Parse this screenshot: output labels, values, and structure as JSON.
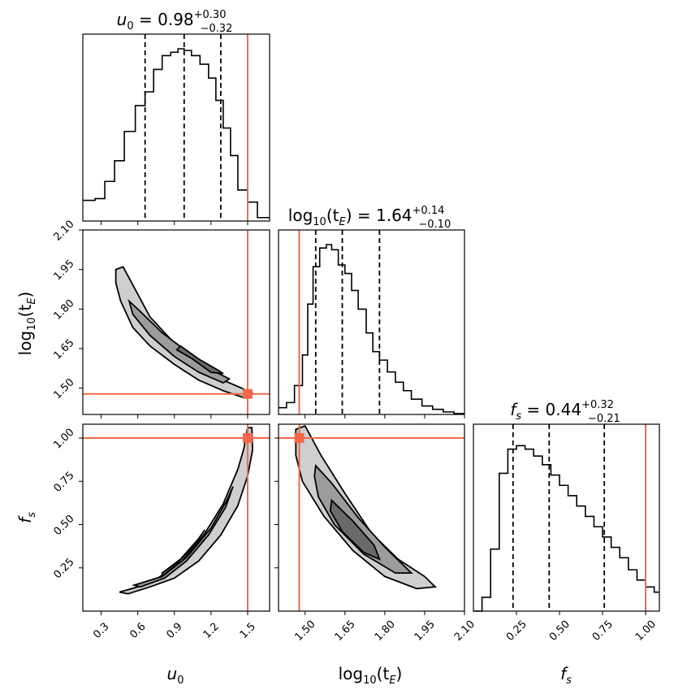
{
  "chart_data": {
    "type": "corner",
    "parameters": [
      {
        "key": "u0",
        "label_main": "u",
        "label_sub": "0",
        "median": "0.98",
        "err_plus": "+0.30",
        "err_minus": "−0.32",
        "truth": 1.5,
        "range": [
          0.15,
          1.68
        ],
        "ticks": [
          0.3,
          0.6,
          0.9,
          1.2,
          1.5
        ],
        "tick_labels": [
          "0.3",
          "0.6",
          "0.9",
          "1.2",
          "1.5"
        ],
        "quantiles": [
          0.66,
          0.98,
          1.28
        ],
        "hist_edges": [
          0.15,
          0.25,
          0.33,
          0.41,
          0.49,
          0.58,
          0.66,
          0.73,
          0.8,
          0.87,
          0.93,
          0.98,
          1.04,
          1.11,
          1.18,
          1.24,
          1.3,
          1.36,
          1.42,
          1.5,
          1.58,
          1.68
        ],
        "hist_counts": [
          0.12,
          0.13,
          0.23,
          0.35,
          0.52,
          0.67,
          0.75,
          0.88,
          0.96,
          0.98,
          1.0,
          0.99,
          0.96,
          0.91,
          0.83,
          0.7,
          0.54,
          0.38,
          0.18,
          0.11,
          0.02
        ]
      },
      {
        "key": "logtE",
        "label_main": "log",
        "label_sub": "10",
        "label_arg": "(t",
        "label_arg_sub": "E",
        "label_end": ")",
        "median": "1.64",
        "err_plus": "+0.14",
        "err_minus": "−0.10",
        "truth": 1.478,
        "range": [
          1.4,
          2.1
        ],
        "ticks": [
          1.5,
          1.65,
          1.8,
          1.95,
          2.1
        ],
        "tick_labels": [
          "1.50",
          "1.65",
          "1.80",
          "1.95",
          "2.10"
        ],
        "quantiles": [
          1.54,
          1.64,
          1.78
        ],
        "hist_edges": [
          1.4,
          1.43,
          1.46,
          1.49,
          1.51,
          1.53,
          1.555,
          1.58,
          1.6,
          1.625,
          1.65,
          1.675,
          1.7,
          1.73,
          1.755,
          1.78,
          1.81,
          1.84,
          1.87,
          1.9,
          1.94,
          1.98,
          2.02,
          2.06,
          2.1
        ],
        "hist_counts": [
          0.04,
          0.07,
          0.17,
          0.35,
          0.65,
          0.87,
          0.98,
          1.0,
          0.97,
          0.88,
          0.83,
          0.73,
          0.62,
          0.48,
          0.37,
          0.32,
          0.25,
          0.19,
          0.14,
          0.09,
          0.05,
          0.03,
          0.015,
          0.005
        ]
      },
      {
        "key": "fs",
        "label_main": "f",
        "label_sub": "s",
        "median": "0.44",
        "err_plus": "+0.32",
        "err_minus": "−0.21",
        "truth": 1.0,
        "range": [
          0.0,
          1.08
        ],
        "ticks": [
          0.25,
          0.5,
          0.75,
          1.0
        ],
        "tick_labels": [
          "0.25",
          "0.50",
          "0.75",
          "1.00"
        ],
        "quantiles": [
          0.23,
          0.44,
          0.76
        ],
        "hist_edges": [
          0.0,
          0.05,
          0.1,
          0.15,
          0.2,
          0.25,
          0.3,
          0.35,
          0.4,
          0.45,
          0.5,
          0.55,
          0.6,
          0.65,
          0.7,
          0.75,
          0.8,
          0.85,
          0.9,
          0.95,
          1.0,
          1.05,
          1.08
        ],
        "hist_counts": [
          0.0,
          0.08,
          0.36,
          0.8,
          0.94,
          0.96,
          0.94,
          0.9,
          0.85,
          0.79,
          0.73,
          0.67,
          0.61,
          0.55,
          0.49,
          0.43,
          0.37,
          0.31,
          0.24,
          0.18,
          0.14,
          0.11
        ]
      }
    ],
    "contours": {
      "logtE_vs_u0": {
        "level1": [
          [
            0.42,
            1.95
          ],
          [
            0.48,
            1.96
          ],
          [
            0.55,
            1.9
          ],
          [
            0.7,
            1.77
          ],
          [
            0.9,
            1.67
          ],
          [
            1.1,
            1.59
          ],
          [
            1.3,
            1.53
          ],
          [
            1.45,
            1.5
          ],
          [
            1.54,
            1.48
          ],
          [
            1.48,
            1.462
          ],
          [
            1.3,
            1.49
          ],
          [
            1.1,
            1.53
          ],
          [
            0.9,
            1.59
          ],
          [
            0.7,
            1.66
          ],
          [
            0.56,
            1.73
          ],
          [
            0.46,
            1.83
          ],
          [
            0.42,
            1.9
          ]
        ],
        "level2": [
          [
            0.53,
            1.83
          ],
          [
            0.6,
            1.8
          ],
          [
            0.8,
            1.71
          ],
          [
            1.0,
            1.64
          ],
          [
            1.2,
            1.57
          ],
          [
            1.35,
            1.535
          ],
          [
            1.3,
            1.52
          ],
          [
            1.1,
            1.56
          ],
          [
            0.9,
            1.62
          ],
          [
            0.7,
            1.7
          ],
          [
            0.56,
            1.78
          ]
        ],
        "level3": [
          [
            0.95,
            1.66
          ],
          [
            1.1,
            1.61
          ],
          [
            1.25,
            1.57
          ],
          [
            1.3,
            1.555
          ],
          [
            1.2,
            1.56
          ],
          [
            1.05,
            1.61
          ],
          [
            0.92,
            1.645
          ]
        ]
      },
      "fs_vs_u0": {
        "level1": [
          [
            0.45,
            0.11
          ],
          [
            0.7,
            0.16
          ],
          [
            0.95,
            0.28
          ],
          [
            1.15,
            0.45
          ],
          [
            1.3,
            0.62
          ],
          [
            1.42,
            0.82
          ],
          [
            1.47,
            0.94
          ],
          [
            1.5,
            1.06
          ],
          [
            1.535,
            1.06
          ],
          [
            1.54,
            0.93
          ],
          [
            1.5,
            0.78
          ],
          [
            1.42,
            0.61
          ],
          [
            1.28,
            0.44
          ],
          [
            1.1,
            0.29
          ],
          [
            0.9,
            0.19
          ],
          [
            0.7,
            0.14
          ],
          [
            0.52,
            0.1
          ]
        ],
        "level2": [
          [
            0.57,
            0.15
          ],
          [
            0.8,
            0.2
          ],
          [
            1.0,
            0.31
          ],
          [
            1.2,
            0.48
          ],
          [
            1.33,
            0.64
          ],
          [
            1.38,
            0.72
          ],
          [
            1.32,
            0.6
          ],
          [
            1.18,
            0.44
          ],
          [
            1.0,
            0.29
          ],
          [
            0.82,
            0.19
          ],
          [
            0.62,
            0.14
          ]
        ],
        "level3": [
          [
            0.8,
            0.22
          ],
          [
            0.95,
            0.3
          ],
          [
            1.1,
            0.42
          ],
          [
            1.15,
            0.47
          ],
          [
            1.08,
            0.4
          ],
          [
            0.93,
            0.28
          ],
          [
            0.8,
            0.2
          ]
        ]
      },
      "fs_vs_logtE": {
        "level1": [
          [
            1.465,
            1.05
          ],
          [
            1.5,
            1.07
          ],
          [
            1.56,
            0.9
          ],
          [
            1.65,
            0.68
          ],
          [
            1.75,
            0.45
          ],
          [
            1.85,
            0.3
          ],
          [
            1.95,
            0.2
          ],
          [
            1.99,
            0.14
          ],
          [
            1.92,
            0.13
          ],
          [
            1.8,
            0.2
          ],
          [
            1.68,
            0.35
          ],
          [
            1.57,
            0.55
          ],
          [
            1.49,
            0.75
          ],
          [
            1.465,
            0.9
          ]
        ],
        "level2": [
          [
            1.54,
            0.84
          ],
          [
            1.6,
            0.74
          ],
          [
            1.7,
            0.54
          ],
          [
            1.8,
            0.37
          ],
          [
            1.9,
            0.22
          ],
          [
            1.84,
            0.22
          ],
          [
            1.72,
            0.33
          ],
          [
            1.61,
            0.5
          ],
          [
            1.55,
            0.66
          ],
          [
            1.535,
            0.78
          ]
        ],
        "level3": [
          [
            1.6,
            0.64
          ],
          [
            1.68,
            0.52
          ],
          [
            1.76,
            0.38
          ],
          [
            1.78,
            0.3
          ],
          [
            1.72,
            0.34
          ],
          [
            1.64,
            0.46
          ],
          [
            1.595,
            0.58
          ]
        ]
      }
    },
    "truth_point_logtE_vs_u0": [
      1.5,
      1.478
    ],
    "truth_point_fs_vs_u0": [
      1.5,
      1.0
    ],
    "truth_point_fs_vs_logtE": [
      1.478,
      1.0
    ]
  },
  "colors": {
    "truth": "#f2684a",
    "hist": "#000000"
  }
}
